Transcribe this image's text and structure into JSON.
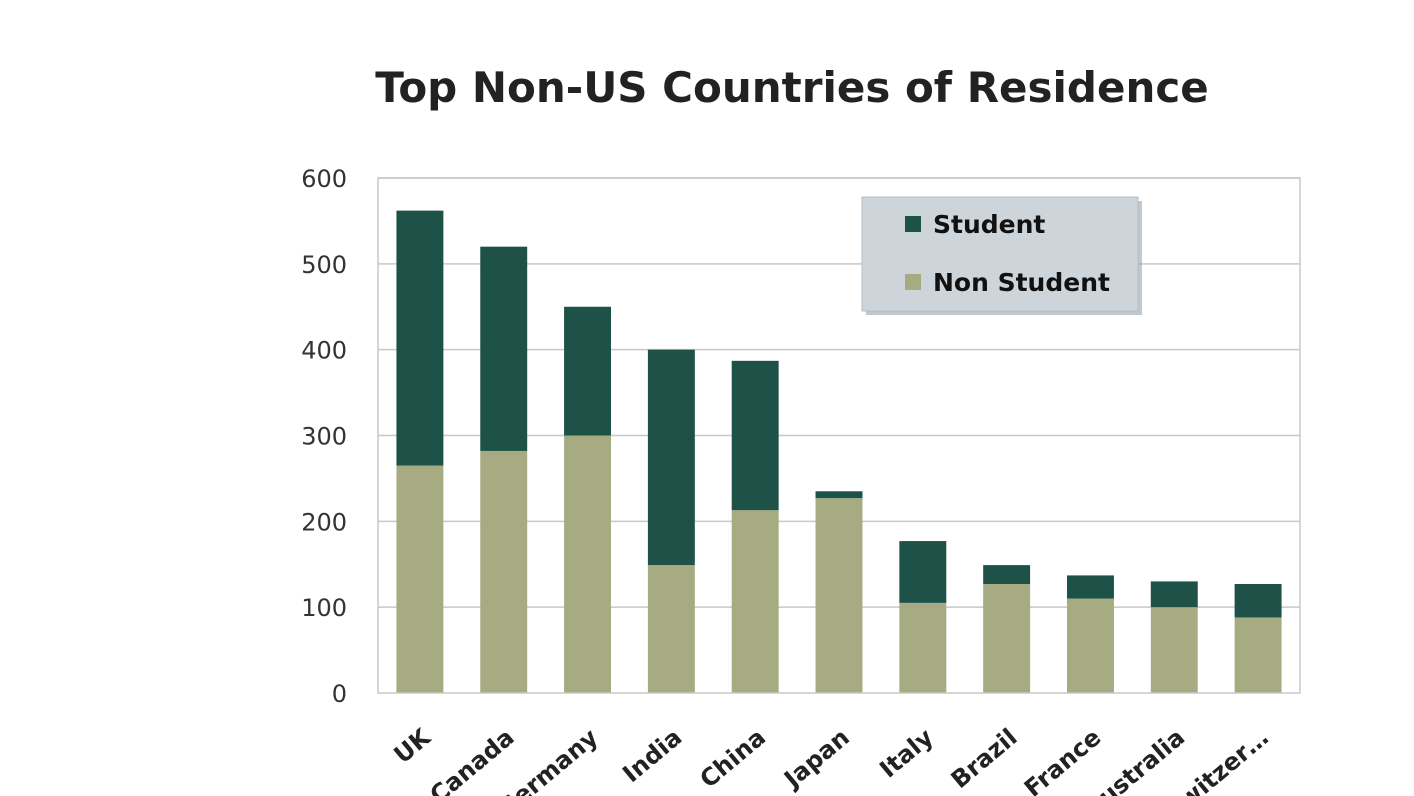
{
  "chart_data": {
    "type": "bar",
    "stacked": true,
    "title": "Top Non-US Countries of Residence",
    "categories": [
      "UK",
      "Canada",
      "Germany",
      "India",
      "China",
      "Japan",
      "Italy",
      "Brazil",
      "France",
      "Australia",
      "Switzer…"
    ],
    "series": [
      {
        "name": "Non Student",
        "color": "#a6ab82",
        "values": [
          265,
          282,
          300,
          149,
          213,
          227,
          105,
          127,
          110,
          100,
          88
        ]
      },
      {
        "name": "Student",
        "color": "#1e5248",
        "values": [
          297,
          238,
          150,
          251,
          174,
          8,
          72,
          22,
          27,
          30,
          39
        ]
      }
    ],
    "ylim": [
      0,
      600
    ],
    "yticks": [
      0,
      100,
      200,
      300,
      400,
      500,
      600
    ],
    "grid": true,
    "legend": {
      "placement": "top-right",
      "order": [
        "Student",
        "Non Student"
      ],
      "background": "#cdd5db"
    }
  }
}
